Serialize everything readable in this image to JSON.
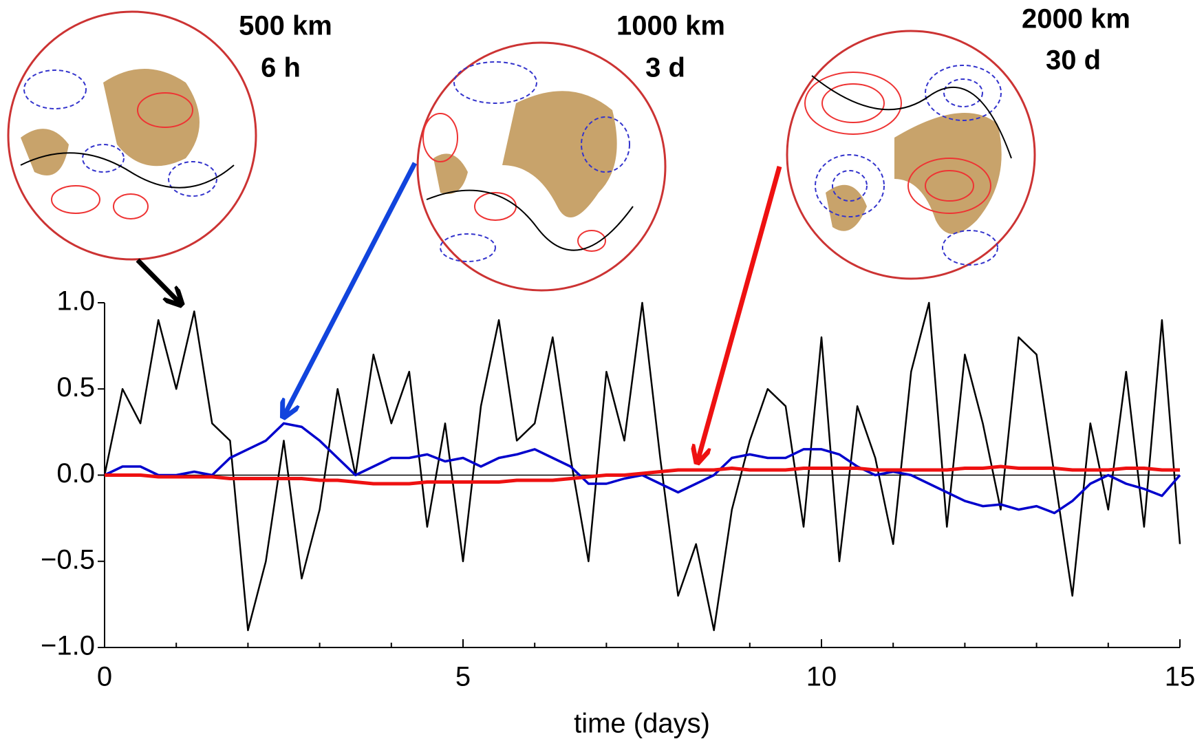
{
  "chart_data": {
    "type": "line",
    "xlabel": "time (days)",
    "annotations": [
      "500 km",
      "6 h",
      "1000 km",
      "3 d",
      "2000 km",
      "30 d"
    ],
    "x": [
      0,
      0.25,
      0.5,
      0.75,
      1,
      1.25,
      1.5,
      1.75,
      2,
      2.25,
      2.5,
      2.75,
      3,
      3.25,
      3.5,
      3.75,
      4,
      4.25,
      4.5,
      4.75,
      5,
      5.25,
      5.5,
      5.75,
      6,
      6.25,
      6.5,
      6.75,
      7,
      7.25,
      7.5,
      7.75,
      8,
      8.25,
      8.5,
      8.75,
      9,
      9.25,
      9.5,
      9.75,
      10,
      10.25,
      10.5,
      10.75,
      11,
      11.25,
      11.5,
      11.75,
      12,
      12.25,
      12.5,
      12.75,
      13,
      13.25,
      13.5,
      13.75,
      14,
      14.25,
      14.5,
      14.75,
      15
    ],
    "series": [
      {
        "color": "#000000",
        "width": 2.5,
        "values": [
          0.0,
          0.5,
          0.3,
          0.9,
          0.5,
          0.95,
          0.3,
          0.2,
          -0.9,
          -0.5,
          0.2,
          -0.6,
          -0.2,
          0.5,
          0.0,
          0.7,
          0.3,
          0.6,
          -0.3,
          0.3,
          -0.5,
          0.4,
          0.9,
          0.2,
          0.3,
          0.8,
          0.1,
          -0.5,
          0.6,
          0.2,
          1.0,
          0.1,
          -0.7,
          -0.4,
          -0.9,
          -0.2,
          0.2,
          0.5,
          0.4,
          -0.3,
          0.8,
          -0.5,
          0.4,
          0.1,
          -0.4,
          0.6,
          1.0,
          -0.3,
          0.7,
          0.3,
          -0.2,
          0.8,
          0.7,
          0.0,
          -0.7,
          0.3,
          -0.2,
          0.6,
          -0.3,
          0.9,
          -0.4
        ]
      },
      {
        "color": "#0000cc",
        "width": 3.5,
        "values": [
          0.0,
          0.05,
          0.05,
          0.0,
          0.0,
          0.02,
          0.0,
          0.1,
          0.15,
          0.2,
          0.3,
          0.28,
          0.2,
          0.1,
          0.0,
          0.05,
          0.1,
          0.1,
          0.12,
          0.08,
          0.1,
          0.05,
          0.1,
          0.12,
          0.15,
          0.1,
          0.05,
          -0.05,
          -0.05,
          -0.02,
          0.0,
          -0.05,
          -0.1,
          -0.05,
          0.0,
          0.1,
          0.12,
          0.1,
          0.1,
          0.15,
          0.15,
          0.12,
          0.05,
          0.0,
          0.02,
          0.0,
          -0.05,
          -0.1,
          -0.15,
          -0.18,
          -0.17,
          -0.2,
          -0.18,
          -0.22,
          -0.15,
          -0.05,
          0.0,
          -0.05,
          -0.08,
          -0.12,
          0.0
        ]
      },
      {
        "color": "#ee1111",
        "width": 5,
        "values": [
          0.0,
          0.0,
          0.0,
          -0.01,
          -0.01,
          -0.01,
          -0.01,
          -0.02,
          -0.02,
          -0.02,
          -0.02,
          -0.02,
          -0.03,
          -0.03,
          -0.04,
          -0.05,
          -0.05,
          -0.05,
          -0.04,
          -0.04,
          -0.04,
          -0.04,
          -0.04,
          -0.03,
          -0.03,
          -0.03,
          -0.02,
          -0.01,
          0.0,
          0.0,
          0.01,
          0.02,
          0.03,
          0.03,
          0.03,
          0.04,
          0.03,
          0.03,
          0.03,
          0.04,
          0.04,
          0.04,
          0.04,
          0.03,
          0.03,
          0.03,
          0.03,
          0.03,
          0.04,
          0.04,
          0.05,
          0.04,
          0.04,
          0.04,
          0.03,
          0.03,
          0.03,
          0.04,
          0.04,
          0.03,
          0.03
        ]
      }
    ],
    "xlim": [
      0,
      15
    ],
    "ylim": [
      -1,
      1
    ],
    "xticks": [
      0,
      5,
      10,
      15
    ],
    "xminorticks": [
      1,
      2,
      3,
      4,
      6,
      7,
      8,
      9,
      11,
      12,
      13,
      14
    ],
    "yticks": [
      {
        "value": -1,
        "label": "−1.0"
      },
      {
        "value": -0.5,
        "label": "−0.5"
      },
      {
        "value": 0,
        "label": "0.0"
      },
      {
        "value": 0.5,
        "label": "0.5"
      },
      {
        "value": 1,
        "label": "1.0"
      }
    ],
    "zero_line": true
  }
}
